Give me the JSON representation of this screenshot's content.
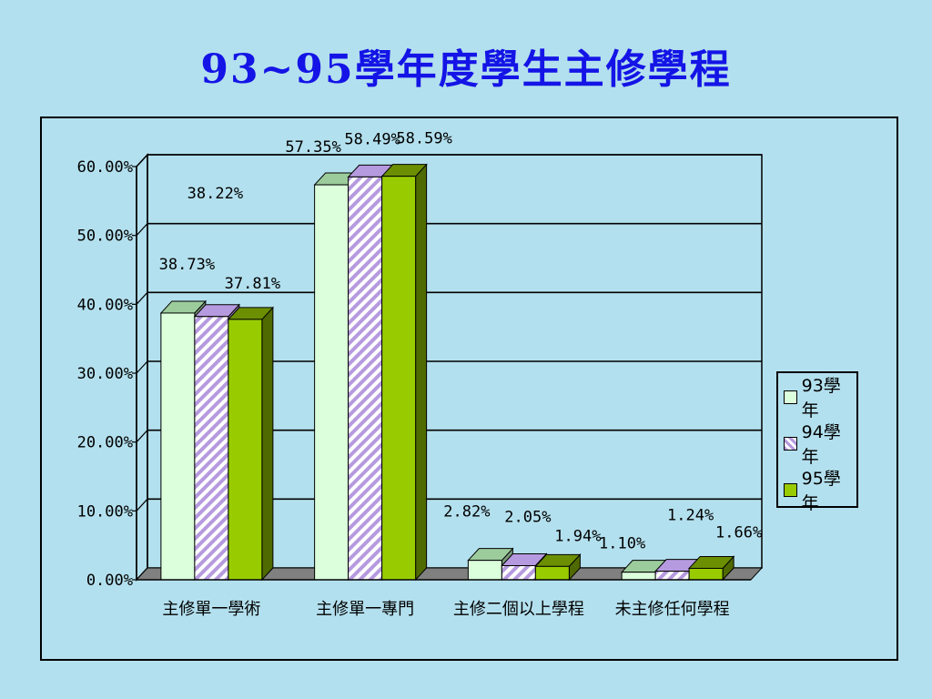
{
  "title": "93~95學年度學生主修學程",
  "colors": {
    "background": "#b3e0ee",
    "title": "#1414e6",
    "series_93": "#dcffdc",
    "series_94_stripe": "#b69adf",
    "series_95": "#99cc00"
  },
  "chart_data": {
    "type": "bar",
    "title": "",
    "xlabel": "",
    "ylabel": "",
    "ylim": [
      0,
      60
    ],
    "yticks": [
      "0.00%",
      "10.00%",
      "20.00%",
      "30.00%",
      "40.00%",
      "50.00%",
      "60.00%"
    ],
    "categories": [
      "主修單一學術",
      "主修單一專門",
      "主修二個以上學程",
      "未主修任何學程"
    ],
    "series": [
      {
        "name": "93學年",
        "values": [
          38.73,
          57.35,
          2.82,
          1.1
        ],
        "labels": [
          "38.73%",
          "57.35%",
          "2.82%",
          "1.10%"
        ]
      },
      {
        "name": "94學年",
        "values": [
          38.22,
          58.49,
          2.05,
          1.24
        ],
        "labels": [
          "38.22%",
          "58.49%",
          "2.05%",
          "1.24%"
        ]
      },
      {
        "name": "95學年",
        "values": [
          37.81,
          58.59,
          1.94,
          1.66
        ],
        "labels": [
          "37.81%",
          "58.59%",
          "1.94%",
          "1.66%"
        ]
      }
    ],
    "grid": true,
    "legend_position": "right",
    "style": "3d-clustered-column"
  }
}
